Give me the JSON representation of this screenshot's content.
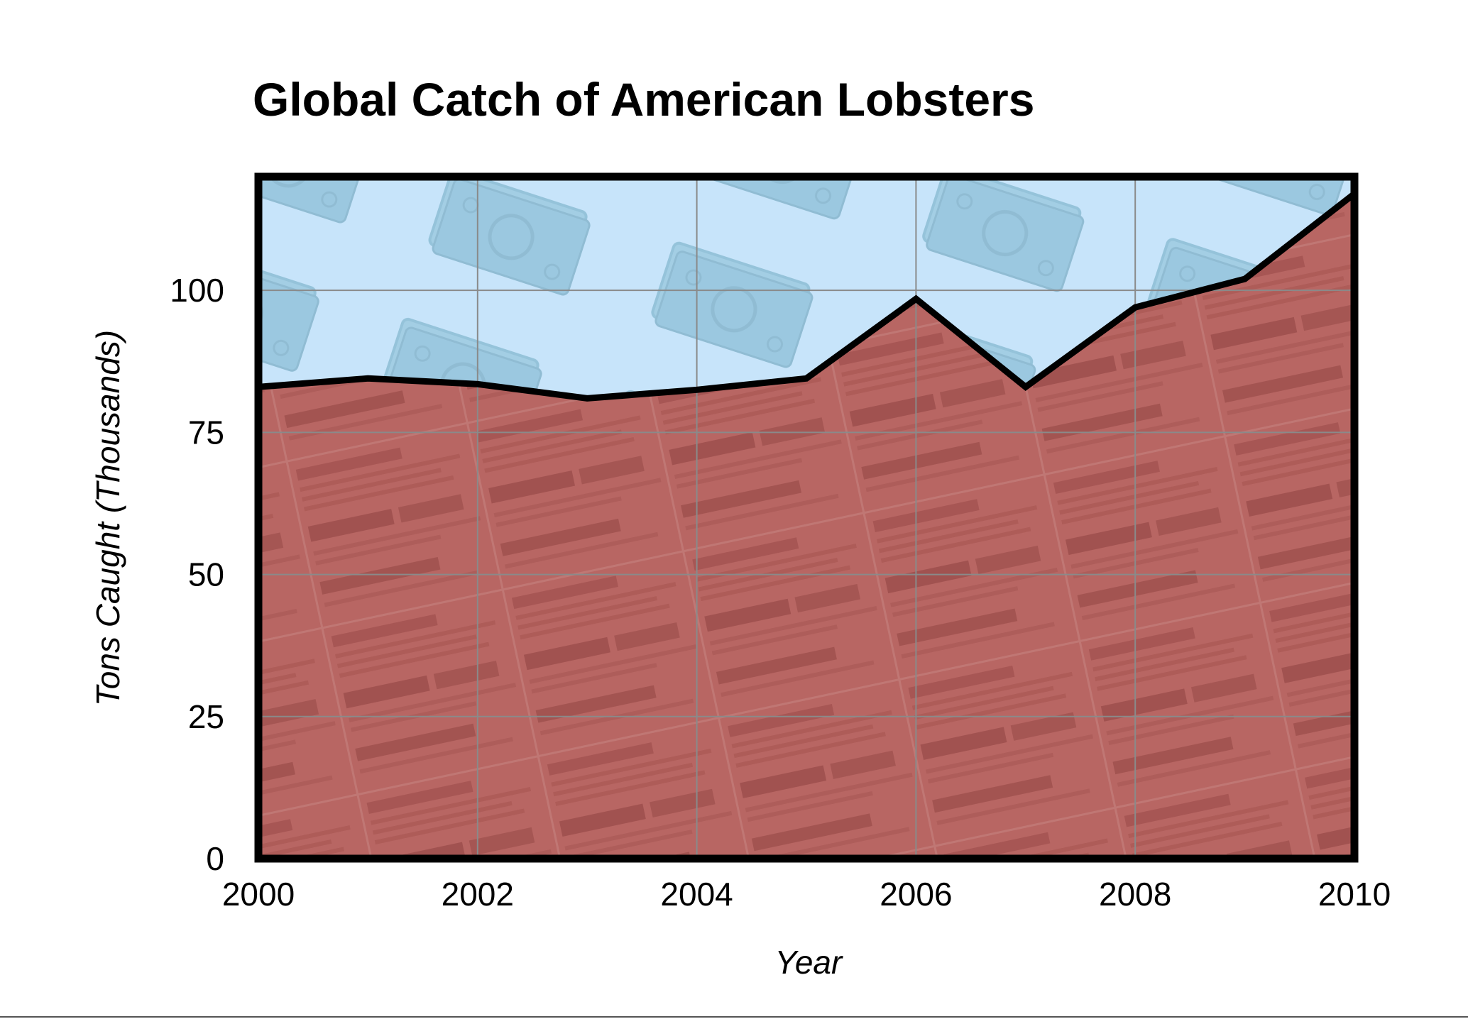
{
  "chart_data": {
    "type": "area",
    "title": "Global Catch of American Lobsters",
    "xlabel": "Year",
    "ylabel": "Tons Caught (Thousands)",
    "x": [
      2000,
      2001,
      2002,
      2003,
      2004,
      2005,
      2006,
      2007,
      2008,
      2009,
      2010
    ],
    "series": [
      {
        "values": [
          83,
          84.5,
          83.5,
          81,
          82.5,
          84.5,
          98.5,
          83,
          97,
          102,
          117
        ]
      }
    ],
    "xlim": [
      2000,
      2010
    ],
    "ylim": [
      0,
      120
    ],
    "x_ticks": [
      "2000",
      "2002",
      "2004",
      "2006",
      "2008",
      "2010"
    ],
    "y_ticks": [
      "0",
      "25",
      "50",
      "75",
      "100"
    ],
    "grid": true,
    "colors": {
      "area_fill": "#b86663",
      "background_fill": "#c7e4fa",
      "money_pattern": "#98c8de",
      "line": "#000000"
    }
  }
}
